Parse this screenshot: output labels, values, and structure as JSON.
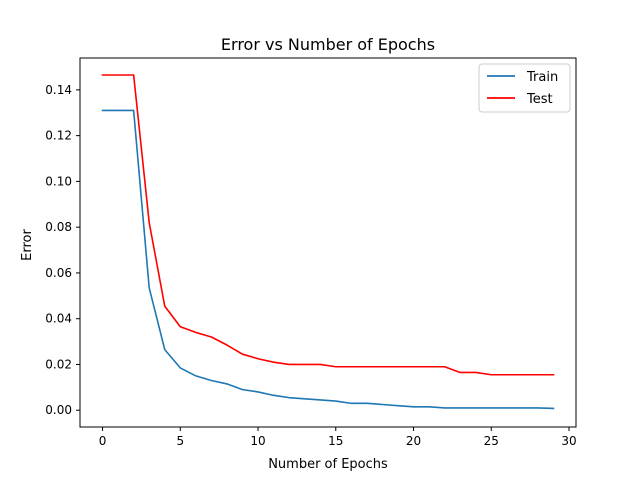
{
  "chart_data": {
    "type": "line",
    "title": "Error vs Number of Epochs",
    "xlabel": "Number of Epochs",
    "ylabel": "Error",
    "xlim": [
      -1.45,
      30.45
    ],
    "ylim": [
      -0.00733,
      0.15393
    ],
    "x_ticks": [
      0,
      5,
      10,
      15,
      20,
      25,
      30
    ],
    "x_tick_labels": [
      "0",
      "5",
      "10",
      "15",
      "20",
      "25",
      "30"
    ],
    "y_ticks": [
      0.0,
      0.02,
      0.04,
      0.06,
      0.08,
      0.1,
      0.12,
      0.14
    ],
    "y_tick_labels": [
      "0.00",
      "0.02",
      "0.04",
      "0.06",
      "0.08",
      "0.10",
      "0.12",
      "0.14"
    ],
    "grid": false,
    "legend_position": "top-right",
    "x": [
      0,
      1,
      2,
      3,
      4,
      5,
      6,
      7,
      8,
      9,
      10,
      11,
      12,
      13,
      14,
      15,
      16,
      17,
      18,
      19,
      20,
      21,
      22,
      23,
      24,
      25,
      26,
      27,
      28,
      29
    ],
    "series": [
      {
        "name": "Train",
        "color": "#1f77b4",
        "values": [
          0.131,
          0.131,
          0.131,
          0.0535,
          0.0265,
          0.0185,
          0.015,
          0.013,
          0.0115,
          0.009,
          0.008,
          0.0065,
          0.0055,
          0.005,
          0.0045,
          0.004,
          0.003,
          0.003,
          0.0025,
          0.002,
          0.0015,
          0.0015,
          0.001,
          0.001,
          0.001,
          0.001,
          0.001,
          0.001,
          0.001,
          0.0008
        ]
      },
      {
        "name": "Test",
        "color": "#ff0000",
        "values": [
          0.1465,
          0.1465,
          0.1465,
          0.082,
          0.0455,
          0.0365,
          0.034,
          0.032,
          0.0285,
          0.0245,
          0.0225,
          0.021,
          0.02,
          0.02,
          0.02,
          0.019,
          0.019,
          0.019,
          0.019,
          0.019,
          0.019,
          0.019,
          0.019,
          0.0165,
          0.0165,
          0.0155,
          0.0155,
          0.0155,
          0.0155,
          0.0155
        ]
      }
    ]
  }
}
